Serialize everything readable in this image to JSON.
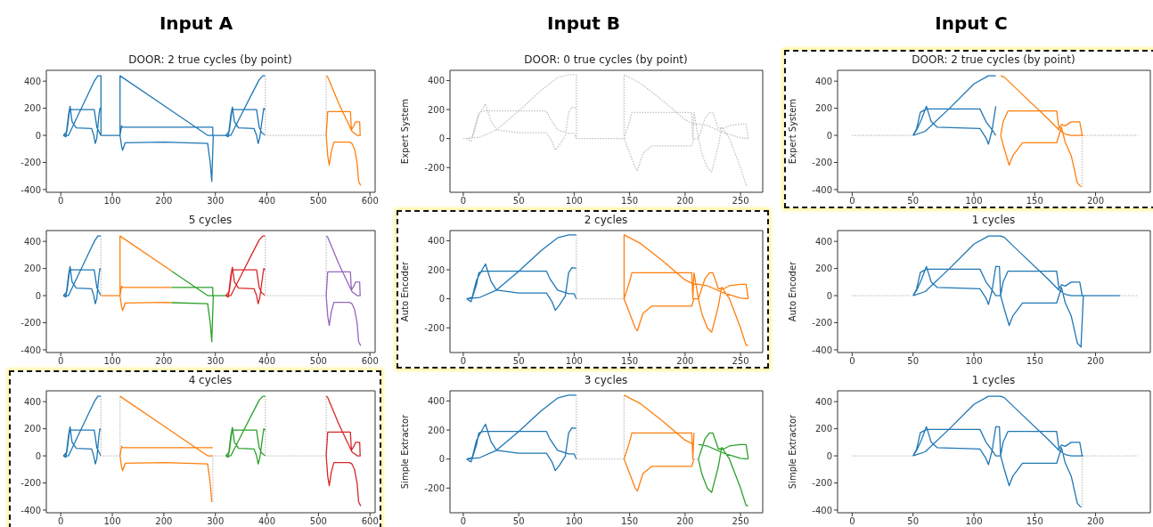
{
  "chart_data": [
    {
      "type": "line",
      "title": "Input A",
      "subtitle": "DOOR: 2 true cycles (by point)",
      "xlim": [
        -28,
        610
      ],
      "xticks": [
        0,
        100,
        200,
        300,
        400,
        500,
        600
      ],
      "ylim": [
        -420,
        480
      ],
      "yticks": [
        -400,
        -200,
        0,
        200,
        400
      ],
      "series": [
        {
          "color": "#1f77b4",
          "x": [
            5,
            15,
            30,
            50,
            65,
            72,
            78,
            78,
            null,
            5,
            12,
            17,
            20,
            65,
            70,
            75,
            78,
            null,
            5,
            10,
            15,
            18,
            22,
            30,
            60,
            64,
            67,
            70,
            74,
            76,
            78,
            null,
            78,
            115,
            115,
            200,
            285,
            320,
            null,
            115,
            118,
            120,
            295,
            295,
            null,
            115,
            118,
            120,
            125,
            200,
            285,
            290,
            293,
            296,
            null,
            320,
            330,
            350,
            370,
            385,
            392,
            397,
            null,
            320,
            327,
            332,
            335,
            380,
            385,
            390,
            397,
            null,
            320,
            325,
            330,
            333,
            337,
            345,
            375,
            380,
            383,
            386,
            392,
            394,
            397
          ],
          "values": [
            0,
            0,
            120,
            280,
            400,
            440,
            440,
            0,
            null,
            0,
            30,
            180,
            190,
            190,
            60,
            20,
            0,
            null,
            0,
            -10,
            150,
            215,
            100,
            55,
            50,
            0,
            -60,
            -20,
            150,
            200,
            190,
            null,
            0,
            0,
            440,
            220,
            0,
            0,
            null,
            0,
            70,
            60,
            60,
            0,
            null,
            0,
            -80,
            -110,
            -55,
            -50,
            -60,
            -200,
            -340,
            0,
            null,
            0,
            0,
            150,
            300,
            410,
            440,
            440,
            null,
            0,
            30,
            180,
            190,
            190,
            60,
            20,
            0,
            null,
            0,
            -10,
            150,
            210,
            100,
            55,
            50,
            0,
            -60,
            -20,
            150,
            200,
            190
          ]
        },
        {
          "color": "#c0c0c0",
          "line_style": "dotted",
          "x": [
            397,
            397,
            515,
            515
          ],
          "values": [
            440,
            0,
            0,
            440
          ]
        },
        {
          "color": "#ff7f0e",
          "x": [
            515,
            518,
            540,
            565,
            575,
            582,
            null,
            515,
            518,
            562,
            564,
            570,
            572,
            580,
            581,
            null,
            515,
            518,
            521,
            525,
            530,
            560,
            565,
            570,
            575,
            578,
            582
          ],
          "values": [
            440,
            430,
            230,
            30,
            0,
            0,
            null,
            0,
            175,
            175,
            40,
            80,
            100,
            100,
            0,
            null,
            0,
            -150,
            -220,
            -120,
            -50,
            -50,
            -60,
            -100,
            -200,
            -340,
            -370
          ]
        }
      ]
    },
    {
      "type": "line",
      "title": "Input B",
      "subtitle": "DOOR: 0 true cycles (by point)",
      "ylabel": "Expert System",
      "xlim": [
        -12,
        270
      ],
      "xticks": [
        0,
        50,
        100,
        150,
        200,
        250
      ],
      "ylim": [
        -370,
        470
      ],
      "yticks": [
        -200,
        0,
        200,
        400
      ],
      "series": [
        {
          "color": "#c0c0c0",
          "line_style": "dotted",
          "x": [
            0,
            3,
            15,
            30,
            50,
            70,
            85,
            95,
            102,
            102,
            145,
            145,
            160,
            180,
            200,
            208,
            212,
            220,
            235,
            250,
            257,
            null,
            3,
            7,
            12,
            14,
            18,
            75,
            78,
            85,
            95,
            100,
            102,
            null,
            3,
            8,
            12,
            17,
            20,
            25,
            30,
            50,
            75,
            80,
            83,
            87,
            92,
            95,
            98,
            102,
            null,
            145,
            150,
            152,
            206,
            207,
            208,
            212,
            218,
            222,
            225,
            230,
            235,
            240,
            250,
            255,
            257,
            null,
            145,
            150,
            155,
            157,
            162,
            170,
            206,
            208,
            212,
            215,
            220,
            224,
            230,
            233,
            240,
            245,
            250,
            255,
            257
          ],
          "values": [
            0,
            0,
            10,
            60,
            190,
            330,
            420,
            440,
            440,
            0,
            0,
            440,
            380,
            260,
            130,
            100,
            100,
            90,
            40,
            5,
            0,
            null,
            0,
            -20,
            100,
            180,
            190,
            190,
            140,
            60,
            35,
            35,
            0,
            null,
            0,
            10,
            130,
            200,
            240,
            120,
            60,
            40,
            40,
            -20,
            -80,
            -40,
            20,
            180,
            215,
            210,
            null,
            0,
            120,
            180,
            180,
            0,
            180,
            0,
            140,
            180,
            180,
            70,
            70,
            90,
            100,
            100,
            0,
            null,
            0,
            -100,
            -200,
            -220,
            -100,
            -50,
            -50,
            0,
            0,
            -100,
            -200,
            -230,
            -50,
            80,
            0,
            -100,
            -200,
            -320,
            -320
          ]
        }
      ]
    },
    {
      "type": "line",
      "title": "Input C",
      "subtitle": "DOOR: 2 true cycles (by point)",
      "ylabel": "Expert System",
      "xlim": [
        -12,
        245
      ],
      "xticks": [
        0,
        50,
        100,
        150,
        200
      ],
      "ylim": [
        -420,
        480
      ],
      "yticks": [
        -400,
        -200,
        0,
        200,
        400
      ],
      "series": [
        {
          "color": "#c0c0c0",
          "line_style": "dotted",
          "x": [
            0,
            50,
            null,
            189,
            189,
            235
          ],
          "values": [
            0,
            0,
            null,
            -380,
            0,
            0
          ]
        },
        {
          "color": "#1f77b4",
          "x": [
            50,
            60,
            80,
            100,
            112,
            118,
            null,
            50,
            53,
            56,
            60,
            62,
            105,
            110,
            115,
            118,
            null,
            50,
            53,
            57,
            61,
            65,
            70,
            105,
            110,
            112,
            115,
            118
          ],
          "values": [
            0,
            30,
            200,
            380,
            440,
            440,
            null,
            0,
            50,
            170,
            190,
            195,
            195,
            100,
            40,
            0,
            null,
            0,
            40,
            120,
            215,
            100,
            60,
            50,
            -20,
            -65,
            40,
            215
          ]
        },
        {
          "color": "#ff7f0e",
          "x": [
            122,
            125,
            140,
            160,
            170,
            175,
            180,
            190,
            null,
            122,
            124,
            128,
            168,
            170,
            172,
            175,
            180,
            187,
            189,
            null,
            122,
            125,
            129,
            132,
            140,
            168,
            172,
            175,
            180,
            185,
            188
          ],
          "values": [
            440,
            430,
            300,
            130,
            40,
            10,
            0,
            0,
            null,
            0,
            100,
            180,
            180,
            50,
            80,
            70,
            100,
            100,
            0,
            null,
            0,
            -100,
            -220,
            -150,
            -55,
            -55,
            60,
            -50,
            -150,
            -350,
            -380
          ]
        }
      ]
    },
    {
      "type": "line",
      "title": "5 cycles",
      "xlim": [
        -28,
        610
      ],
      "xticks": [
        0,
        100,
        200,
        300,
        400,
        500,
        600
      ],
      "ylim": [
        -420,
        480
      ],
      "yticks": [
        -400,
        -200,
        0,
        200,
        400
      ],
      "series": [
        {
          "color": "#1f77b4",
          "x": [
            5,
            15,
            30,
            50,
            65,
            72,
            78,
            null,
            5,
            12,
            17,
            20,
            65,
            70,
            75,
            78,
            null,
            5,
            10,
            15,
            18,
            22,
            30,
            60,
            64,
            67,
            70,
            74,
            76,
            78
          ],
          "values": [
            0,
            0,
            120,
            280,
            400,
            440,
            440,
            null,
            0,
            30,
            180,
            190,
            190,
            60,
            20,
            0,
            null,
            0,
            -10,
            150,
            215,
            100,
            55,
            50,
            0,
            -60,
            -20,
            150,
            200,
            190
          ]
        },
        {
          "color": "#ff7f0e",
          "x": [
            78,
            115,
            115,
            200,
            215,
            null,
            115,
            118,
            120,
            215,
            null,
            115,
            118,
            120,
            125,
            200,
            215
          ],
          "values": [
            0,
            0,
            440,
            220,
            181,
            null,
            0,
            70,
            60,
            60,
            null,
            0,
            -80,
            -110,
            -55,
            -50,
            -52
          ]
        },
        {
          "color": "#2ca02c",
          "x": [
            215,
            285,
            320,
            null,
            215,
            295,
            295,
            null,
            215,
            285,
            290,
            293,
            296
          ],
          "values": [
            181,
            0,
            0,
            null,
            60,
            60,
            0,
            null,
            -52,
            -60,
            -200,
            -340,
            0
          ]
        },
        {
          "color": "#d62728",
          "x": [
            320,
            330,
            350,
            370,
            385,
            392,
            397,
            null,
            320,
            327,
            332,
            335,
            380,
            385,
            390,
            397,
            null,
            320,
            325,
            330,
            333,
            337,
            345,
            375,
            380,
            383,
            386,
            392,
            394,
            397
          ],
          "values": [
            0,
            0,
            150,
            300,
            410,
            440,
            440,
            null,
            0,
            30,
            180,
            190,
            190,
            60,
            20,
            0,
            null,
            0,
            -10,
            150,
            210,
            100,
            55,
            50,
            0,
            -60,
            -20,
            150,
            200,
            190
          ]
        },
        {
          "color": "#c0c0c0",
          "line_style": "dotted",
          "x": [
            78,
            78,
            null,
            397,
            397,
            515,
            515
          ],
          "values": [
            440,
            0,
            null,
            440,
            0,
            0,
            440
          ]
        },
        {
          "color": "#9467bd",
          "x": [
            515,
            518,
            540,
            565,
            575,
            582,
            null,
            515,
            518,
            562,
            564,
            570,
            572,
            580,
            581,
            null,
            515,
            518,
            521,
            525,
            530,
            560,
            565,
            570,
            575,
            578,
            582
          ],
          "values": [
            440,
            430,
            230,
            30,
            0,
            0,
            null,
            0,
            175,
            175,
            40,
            80,
            100,
            100,
            0,
            null,
            0,
            -150,
            -220,
            -120,
            -50,
            -50,
            -60,
            -100,
            -200,
            -340,
            -370
          ]
        }
      ]
    },
    {
      "type": "line",
      "title": "2 cycles",
      "ylabel": "Auto Encoder",
      "xlim": [
        -12,
        270
      ],
      "xticks": [
        0,
        50,
        100,
        150,
        200,
        250
      ],
      "ylim": [
        -370,
        470
      ],
      "yticks": [
        -200,
        0,
        200,
        400
      ],
      "series": [
        {
          "color": "#1f77b4",
          "x": [
            3,
            15,
            30,
            50,
            70,
            85,
            95,
            102,
            null,
            3,
            7,
            12,
            14,
            18,
            75,
            78,
            85,
            95,
            100,
            102,
            null,
            3,
            8,
            12,
            17,
            20,
            25,
            30,
            50,
            75,
            80,
            83,
            87,
            92,
            95,
            98,
            102
          ],
          "values": [
            0,
            10,
            60,
            190,
            330,
            420,
            440,
            440,
            null,
            0,
            -20,
            100,
            180,
            190,
            190,
            140,
            60,
            35,
            35,
            0,
            null,
            0,
            10,
            130,
            200,
            240,
            120,
            60,
            40,
            40,
            -20,
            -80,
            -40,
            20,
            180,
            215,
            210
          ]
        },
        {
          "color": "#c0c0c0",
          "line_style": "dotted",
          "x": [
            102,
            102,
            145
          ],
          "values": [
            440,
            0,
            0
          ]
        },
        {
          "color": "#ff7f0e",
          "x": [
            145,
            145,
            160,
            180,
            200,
            208,
            212,
            220,
            235,
            250,
            257,
            null,
            145,
            150,
            152,
            206,
            207,
            208,
            212,
            218,
            222,
            225,
            230,
            235,
            240,
            250,
            255,
            257,
            null,
            145,
            150,
            155,
            157,
            162,
            170,
            206,
            208,
            212,
            215,
            220,
            224,
            230,
            233,
            240,
            245,
            250,
            255,
            257
          ],
          "values": [
            0,
            440,
            380,
            260,
            130,
            100,
            100,
            90,
            40,
            5,
            0,
            null,
            0,
            120,
            180,
            180,
            0,
            180,
            0,
            140,
            180,
            180,
            70,
            70,
            90,
            100,
            100,
            0,
            null,
            0,
            -100,
            -200,
            -220,
            -100,
            -50,
            -50,
            0,
            0,
            -100,
            -200,
            -230,
            -50,
            80,
            0,
            -100,
            -200,
            -320,
            -320
          ]
        }
      ]
    },
    {
      "type": "line",
      "title": "1 cycles",
      "ylabel": "Auto Encoder",
      "xlim": [
        -12,
        245
      ],
      "xticks": [
        0,
        50,
        100,
        150,
        200
      ],
      "ylim": [
        -420,
        480
      ],
      "yticks": [
        -400,
        -200,
        0,
        200,
        400
      ],
      "series": [
        {
          "color": "#c0c0c0",
          "line_style": "dotted",
          "x": [
            0,
            48,
            null,
            220,
            235
          ],
          "values": [
            0,
            0,
            null,
            0,
            0
          ]
        },
        {
          "color": "#1f77b4",
          "x": [
            50,
            60,
            80,
            100,
            112,
            118,
            122,
            125,
            140,
            160,
            170,
            175,
            180,
            190,
            220,
            null,
            50,
            53,
            56,
            60,
            62,
            105,
            110,
            115,
            118,
            122,
            124,
            128,
            168,
            170,
            172,
            175,
            180,
            187,
            189,
            null,
            50,
            53,
            57,
            61,
            65,
            70,
            105,
            110,
            112,
            115,
            118,
            121,
            122,
            125,
            129,
            132,
            140,
            168,
            172,
            175,
            180,
            185,
            188,
            190
          ],
          "values": [
            0,
            30,
            200,
            380,
            440,
            440,
            440,
            430,
            300,
            130,
            40,
            10,
            0,
            0,
            0,
            null,
            0,
            50,
            170,
            190,
            195,
            195,
            100,
            40,
            0,
            0,
            100,
            180,
            180,
            50,
            80,
            70,
            100,
            100,
            0,
            null,
            0,
            40,
            120,
            215,
            100,
            60,
            50,
            -20,
            -65,
            40,
            215,
            215,
            0,
            -100,
            -220,
            -150,
            -55,
            -55,
            60,
            -50,
            -150,
            -350,
            -380,
            0
          ]
        }
      ]
    },
    {
      "type": "line",
      "title": "4 cycles",
      "xlim": [
        -28,
        610
      ],
      "xticks": [
        0,
        100,
        200,
        300,
        400,
        500,
        600
      ],
      "ylim": [
        -420,
        480
      ],
      "yticks": [
        -400,
        -200,
        0,
        200,
        400
      ],
      "series": [
        {
          "color": "#1f77b4",
          "x": [
            5,
            15,
            30,
            50,
            65,
            72,
            78,
            null,
            5,
            12,
            17,
            20,
            65,
            70,
            75,
            78,
            null,
            5,
            10,
            15,
            18,
            22,
            30,
            60,
            64,
            67,
            70,
            74,
            76,
            78
          ],
          "values": [
            0,
            0,
            120,
            280,
            400,
            440,
            440,
            null,
            0,
            30,
            180,
            190,
            190,
            60,
            20,
            0,
            null,
            0,
            -10,
            150,
            215,
            100,
            55,
            50,
            0,
            -60,
            -20,
            150,
            200,
            190
          ]
        },
        {
          "color": "#c0c0c0",
          "line_style": "dotted",
          "x": [
            78,
            78,
            115,
            115,
            null,
            295,
            295,
            320,
            null,
            397,
            397,
            515,
            515
          ],
          "values": [
            440,
            0,
            0,
            440,
            null,
            -340,
            0,
            0,
            null,
            440,
            0,
            0,
            440
          ]
        },
        {
          "color": "#ff7f0e",
          "x": [
            115,
            200,
            285,
            295,
            null,
            115,
            118,
            120,
            295,
            null,
            115,
            118,
            120,
            125,
            200,
            285,
            290,
            293
          ],
          "values": [
            440,
            220,
            0,
            0,
            null,
            0,
            70,
            60,
            60,
            null,
            0,
            -80,
            -110,
            -55,
            -50,
            -60,
            -200,
            -340
          ]
        },
        {
          "color": "#2ca02c",
          "x": [
            320,
            330,
            350,
            370,
            385,
            392,
            397,
            null,
            320,
            327,
            332,
            335,
            380,
            385,
            390,
            397,
            null,
            320,
            325,
            330,
            333,
            337,
            345,
            375,
            380,
            383,
            386,
            392,
            394,
            397
          ],
          "values": [
            0,
            0,
            150,
            300,
            410,
            440,
            440,
            null,
            0,
            30,
            180,
            190,
            190,
            60,
            20,
            0,
            null,
            0,
            -10,
            150,
            210,
            100,
            55,
            50,
            0,
            -60,
            -20,
            150,
            200,
            190
          ]
        },
        {
          "color": "#d62728",
          "x": [
            515,
            518,
            540,
            565,
            575,
            582,
            null,
            515,
            518,
            562,
            564,
            570,
            572,
            580,
            581,
            null,
            515,
            518,
            521,
            525,
            530,
            560,
            565,
            570,
            575,
            578,
            582
          ],
          "values": [
            440,
            430,
            230,
            30,
            0,
            0,
            null,
            0,
            175,
            175,
            40,
            80,
            100,
            100,
            0,
            null,
            0,
            -150,
            -220,
            -120,
            -50,
            -50,
            -60,
            -100,
            -200,
            -340,
            -370
          ]
        }
      ]
    },
    {
      "type": "line",
      "title": "3 cycles",
      "ylabel": "Simple Extractor",
      "xlim": [
        -12,
        270
      ],
      "xticks": [
        0,
        50,
        100,
        150,
        200,
        250
      ],
      "ylim": [
        -370,
        470
      ],
      "yticks": [
        -200,
        0,
        200,
        400
      ],
      "series": [
        {
          "color": "#1f77b4",
          "x": [
            3,
            15,
            30,
            50,
            70,
            85,
            95,
            102,
            null,
            3,
            7,
            12,
            14,
            18,
            75,
            78,
            85,
            95,
            100,
            102,
            null,
            3,
            8,
            12,
            17,
            20,
            25,
            30,
            50,
            75,
            80,
            83,
            87,
            92,
            95,
            98,
            102
          ],
          "values": [
            0,
            10,
            60,
            190,
            330,
            420,
            440,
            440,
            null,
            0,
            -20,
            100,
            180,
            190,
            190,
            140,
            60,
            35,
            35,
            0,
            null,
            0,
            10,
            130,
            200,
            240,
            120,
            60,
            40,
            40,
            -20,
            -80,
            -40,
            20,
            180,
            215,
            210
          ]
        },
        {
          "color": "#c0c0c0",
          "line_style": "dotted",
          "x": [
            102,
            102,
            145,
            145,
            null,
            208,
            212
          ],
          "values": [
            440,
            0,
            0,
            440,
            null,
            0,
            0
          ]
        },
        {
          "color": "#ff7f0e",
          "x": [
            145,
            160,
            180,
            200,
            208,
            null,
            145,
            150,
            152,
            206,
            207,
            208,
            null,
            145,
            150,
            155,
            157,
            162,
            170,
            206,
            208
          ],
          "values": [
            440,
            380,
            260,
            130,
            100,
            null,
            0,
            120,
            180,
            180,
            0,
            180,
            null,
            0,
            -100,
            -200,
            -220,
            -100,
            -50,
            -50,
            0
          ]
        },
        {
          "color": "#2ca02c",
          "x": [
            212,
            220,
            235,
            250,
            257,
            null,
            212,
            218,
            222,
            225,
            230,
            235,
            240,
            250,
            255,
            257,
            null,
            212,
            215,
            220,
            224,
            230,
            233,
            240,
            245,
            250,
            255,
            257
          ],
          "values": [
            100,
            90,
            40,
            5,
            0,
            null,
            0,
            140,
            180,
            180,
            70,
            70,
            90,
            100,
            100,
            0,
            null,
            0,
            -100,
            -200,
            -230,
            -50,
            80,
            0,
            -100,
            -200,
            -320,
            -320
          ]
        }
      ]
    },
    {
      "type": "line",
      "title": "1 cycles",
      "ylabel": "Simple Extractor",
      "xlim": [
        -12,
        245
      ],
      "xticks": [
        0,
        50,
        100,
        150,
        200
      ],
      "ylim": [
        -420,
        480
      ],
      "yticks": [
        -400,
        -200,
        0,
        200,
        400
      ],
      "series": [
        {
          "color": "#c0c0c0",
          "line_style": "dotted",
          "x": [
            0,
            50,
            null,
            189,
            189,
            235
          ],
          "values": [
            0,
            0,
            null,
            -380,
            0,
            0
          ]
        },
        {
          "color": "#1f77b4",
          "x": [
            50,
            60,
            80,
            100,
            112,
            118,
            122,
            125,
            140,
            160,
            170,
            175,
            180,
            190,
            null,
            50,
            53,
            56,
            60,
            62,
            105,
            110,
            115,
            118,
            122,
            124,
            128,
            168,
            170,
            172,
            175,
            180,
            187,
            189,
            null,
            50,
            53,
            57,
            61,
            65,
            70,
            105,
            110,
            112,
            115,
            118,
            121,
            122,
            125,
            129,
            132,
            140,
            168,
            172,
            175,
            180,
            185,
            188
          ],
          "values": [
            0,
            30,
            200,
            380,
            440,
            440,
            440,
            430,
            300,
            130,
            40,
            10,
            0,
            0,
            null,
            0,
            50,
            170,
            190,
            195,
            195,
            100,
            40,
            0,
            0,
            100,
            180,
            180,
            50,
            80,
            70,
            100,
            100,
            0,
            null,
            0,
            40,
            120,
            215,
            100,
            60,
            50,
            -20,
            -65,
            40,
            215,
            215,
            0,
            -100,
            -220,
            -150,
            -55,
            -55,
            60,
            -50,
            -150,
            -350,
            -380
          ]
        }
      ]
    }
  ]
}
